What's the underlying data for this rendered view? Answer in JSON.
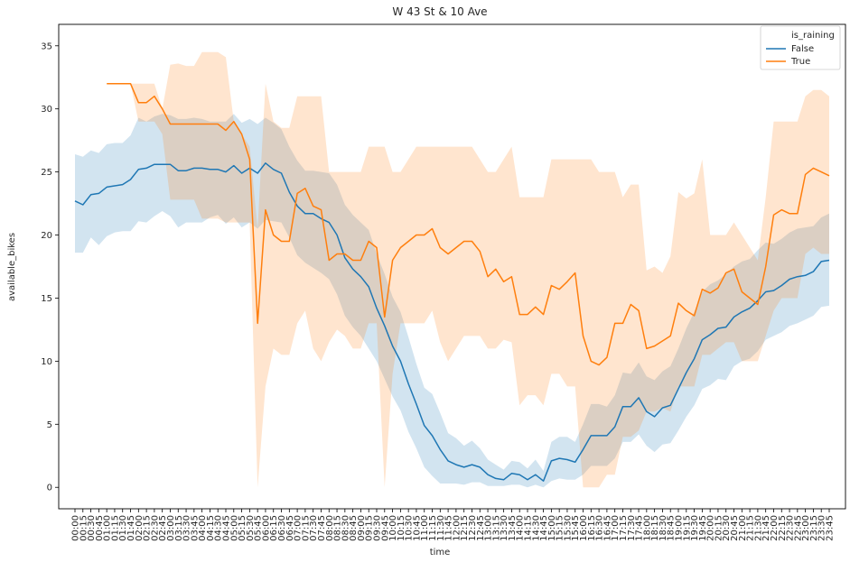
{
  "chart_data": {
    "type": "line",
    "title": "W 43 St & 10 Ave",
    "xlabel": "time",
    "ylabel": "available_bikes",
    "ylim": [
      -1.7,
      36.7
    ],
    "yticks": [
      0,
      5,
      10,
      15,
      20,
      25,
      30,
      35
    ],
    "grid": false,
    "legend": {
      "placement": "top-right",
      "title": "is_raining",
      "entries": [
        "False",
        "True"
      ]
    },
    "x": [
      "00:00",
      "00:15",
      "00:30",
      "00:45",
      "01:00",
      "01:15",
      "01:30",
      "01:45",
      "02:00",
      "02:15",
      "02:30",
      "02:45",
      "03:00",
      "03:15",
      "03:30",
      "03:45",
      "04:00",
      "04:15",
      "04:30",
      "04:45",
      "05:00",
      "05:15",
      "05:30",
      "05:45",
      "06:00",
      "06:15",
      "06:30",
      "06:45",
      "07:00",
      "07:15",
      "07:30",
      "07:45",
      "08:00",
      "08:15",
      "08:30",
      "08:45",
      "09:00",
      "09:15",
      "09:30",
      "09:45",
      "10:00",
      "10:15",
      "10:30",
      "10:45",
      "11:00",
      "11:15",
      "11:30",
      "11:45",
      "12:00",
      "12:15",
      "12:30",
      "12:45",
      "13:00",
      "13:15",
      "13:30",
      "13:45",
      "14:00",
      "14:15",
      "14:30",
      "14:45",
      "15:00",
      "15:15",
      "15:30",
      "15:45",
      "16:00",
      "16:15",
      "16:30",
      "16:45",
      "17:00",
      "17:15",
      "17:30",
      "17:45",
      "18:00",
      "18:15",
      "18:30",
      "18:45",
      "19:00",
      "19:15",
      "19:30",
      "19:45",
      "20:00",
      "20:15",
      "20:30",
      "20:45",
      "21:00",
      "21:15",
      "21:30",
      "21:45",
      "22:00",
      "22:15",
      "22:30",
      "22:45",
      "23:00",
      "23:15",
      "23:30",
      "23:45"
    ],
    "series": [
      {
        "name": "False",
        "color": "#1f77b4",
        "values": [
          22.7,
          22.4,
          23.2,
          23.3,
          23.8,
          23.9,
          24.0,
          24.4,
          25.2,
          25.3,
          25.6,
          25.6,
          25.6,
          25.1,
          25.1,
          25.3,
          25.3,
          25.2,
          25.2,
          25.0,
          25.5,
          24.9,
          25.3,
          24.9,
          25.7,
          25.2,
          24.9,
          23.4,
          22.3,
          21.7,
          21.7,
          21.3,
          21.0,
          20.0,
          18.2,
          17.3,
          16.7,
          15.9,
          14.2,
          12.8,
          11.2,
          10.0,
          8.2,
          6.6,
          4.9,
          4.1,
          3.0,
          2.1,
          1.8,
          1.6,
          1.8,
          1.6,
          1.0,
          0.7,
          0.6,
          1.1,
          1.0,
          0.6,
          1.0,
          0.5,
          2.1,
          2.3,
          2.2,
          2.0,
          3.0,
          4.1,
          4.1,
          4.1,
          4.8,
          6.4,
          6.4,
          7.1,
          6.0,
          5.6,
          6.3,
          6.5,
          7.8,
          9.1,
          10.2,
          11.7,
          12.1,
          12.6,
          12.7,
          13.5,
          13.9,
          14.2,
          14.8,
          15.5,
          15.6,
          16.0,
          16.5,
          16.7,
          16.8,
          17.1,
          17.9,
          18.0
        ],
        "ci_lower": [
          18.6,
          18.6,
          19.8,
          19.2,
          19.9,
          20.2,
          20.3,
          20.3,
          21.1,
          21.0,
          21.5,
          21.9,
          21.5,
          20.6,
          21.0,
          21.0,
          21.0,
          21.4,
          21.6,
          20.9,
          21.4,
          20.6,
          21.0,
          20.5,
          21.2,
          21.1,
          21.0,
          19.8,
          18.4,
          17.8,
          17.4,
          17.0,
          16.5,
          15.3,
          13.6,
          12.7,
          12.0,
          11.0,
          10.0,
          8.6,
          7.2,
          6.1,
          4.4,
          3.1,
          1.6,
          0.9,
          0.3,
          0.3,
          0.3,
          0.2,
          0.4,
          0.4,
          0.1,
          0.1,
          0.1,
          0.2,
          0.2,
          0.0,
          0.2,
          0.0,
          0.5,
          0.7,
          0.6,
          0.6,
          1.0,
          1.7,
          1.7,
          1.7,
          2.3,
          3.6,
          3.6,
          4.2,
          3.3,
          2.8,
          3.4,
          3.5,
          4.5,
          5.6,
          6.5,
          7.8,
          8.1,
          8.6,
          8.5,
          9.6,
          10.0,
          10.2,
          10.8,
          11.7,
          12.0,
          12.3,
          12.8,
          13.0,
          13.3,
          13.6,
          14.3,
          14.4
        ],
        "ci_upper": [
          26.4,
          26.2,
          26.7,
          26.5,
          27.2,
          27.3,
          27.3,
          27.9,
          29.3,
          29.0,
          29.4,
          29.6,
          29.5,
          29.2,
          29.2,
          29.3,
          29.2,
          29.0,
          29.0,
          29.0,
          29.6,
          28.9,
          29.2,
          28.8,
          29.3,
          28.9,
          28.4,
          27.0,
          25.9,
          25.1,
          25.1,
          25.0,
          24.9,
          24.0,
          22.4,
          21.6,
          21.0,
          20.4,
          18.5,
          16.9,
          15.1,
          13.9,
          11.9,
          9.8,
          7.9,
          7.4,
          5.9,
          4.3,
          3.9,
          3.3,
          3.7,
          3.1,
          2.2,
          1.8,
          1.4,
          2.1,
          2.0,
          1.5,
          2.2,
          1.3,
          3.6,
          4.0,
          4.0,
          3.6,
          5.0,
          6.6,
          6.6,
          6.4,
          7.3,
          9.1,
          9.0,
          9.9,
          8.8,
          8.5,
          9.2,
          9.6,
          11.0,
          12.6,
          13.9,
          15.5,
          16.1,
          16.4,
          16.9,
          17.5,
          17.9,
          18.1,
          18.8,
          19.4,
          19.3,
          19.7,
          20.2,
          20.5,
          20.6,
          20.7,
          21.4,
          21.7
        ]
      },
      {
        "name": "True",
        "color": "#ff7f0e",
        "values": [
          null,
          null,
          null,
          null,
          32.0,
          32.0,
          32.0,
          32.0,
          30.5,
          30.5,
          31.0,
          30.0,
          28.8,
          28.8,
          28.8,
          28.8,
          28.8,
          28.8,
          28.8,
          28.3,
          29.0,
          28.0,
          26.0,
          13.0,
          22.0,
          20.0,
          19.5,
          19.5,
          23.3,
          23.7,
          22.3,
          22.0,
          18.0,
          18.5,
          18.5,
          18.0,
          18.0,
          19.5,
          19.0,
          13.5,
          18.0,
          19.0,
          19.5,
          20.0,
          20.0,
          20.5,
          19.0,
          18.5,
          19.0,
          19.5,
          19.5,
          18.7,
          16.7,
          17.3,
          16.3,
          16.7,
          13.7,
          13.7,
          14.3,
          13.7,
          16.0,
          15.7,
          16.3,
          17.0,
          12.0,
          10.0,
          9.7,
          10.3,
          13.0,
          13.0,
          14.5,
          14.0,
          11.0,
          11.2,
          11.6,
          12.0,
          14.6,
          14.0,
          13.6,
          15.7,
          15.4,
          15.8,
          17.0,
          17.3,
          15.5,
          15.0,
          14.5,
          17.5,
          21.6,
          22.0,
          21.7,
          21.7,
          24.8,
          25.3,
          25.0,
          24.7
        ],
        "ci_lower": [
          null,
          null,
          null,
          null,
          32.0,
          32.0,
          32.0,
          32.0,
          29.0,
          29.0,
          29.0,
          28.0,
          22.8,
          22.8,
          22.8,
          22.8,
          21.3,
          21.3,
          21.3,
          21.0,
          21.0,
          21.0,
          21.0,
          0.0,
          8.0,
          11.0,
          10.5,
          10.5,
          13.0,
          14.0,
          11.0,
          10.0,
          11.5,
          12.5,
          12.0,
          11.0,
          11.0,
          13.0,
          13.0,
          0.0,
          9.0,
          13.0,
          13.0,
          13.0,
          13.0,
          14.0,
          11.5,
          10.0,
          11.0,
          12.0,
          12.0,
          12.0,
          11.0,
          11.0,
          11.7,
          11.5,
          6.5,
          7.3,
          7.3,
          6.5,
          9.0,
          9.0,
          8.0,
          8.0,
          0.0,
          0.0,
          0.0,
          1.0,
          1.0,
          4.0,
          4.0,
          4.5,
          6.0,
          6.0,
          6.3,
          6.0,
          8.0,
          8.0,
          8.0,
          10.5,
          10.5,
          11.0,
          11.5,
          11.5,
          10.0,
          10.0,
          10.0,
          12.0,
          14.0,
          15.0,
          15.0,
          15.0,
          18.5,
          19.0,
          18.5,
          18.5
        ],
        "ci_upper": [
          null,
          null,
          null,
          null,
          32.0,
          32.0,
          32.0,
          32.0,
          32.0,
          32.0,
          32.0,
          30.0,
          33.5,
          33.6,
          33.4,
          33.4,
          34.5,
          34.5,
          34.5,
          34.1,
          29.0,
          28.0,
          27.0,
          20.5,
          32.0,
          29.0,
          28.5,
          28.5,
          31.0,
          31.0,
          31.0,
          31.0,
          25.0,
          25.0,
          25.0,
          25.0,
          25.0,
          27.0,
          27.0,
          27.0,
          25.0,
          25.0,
          26.0,
          27.0,
          27.0,
          27.0,
          27.0,
          27.0,
          27.0,
          27.0,
          27.0,
          26.0,
          25.0,
          25.0,
          26.0,
          27.0,
          23.0,
          23.0,
          23.0,
          23.0,
          26.0,
          26.0,
          26.0,
          26.0,
          26.0,
          26.0,
          25.0,
          25.0,
          25.0,
          23.0,
          24.0,
          24.0,
          17.2,
          17.5,
          17.0,
          18.3,
          23.4,
          22.9,
          23.3,
          26.0,
          20.0,
          20.0,
          20.0,
          21.0,
          20.0,
          19.0,
          18.0,
          23.0,
          29.0,
          29.0,
          29.0,
          29.0,
          31.0,
          31.5,
          31.5,
          31.0
        ]
      }
    ]
  }
}
